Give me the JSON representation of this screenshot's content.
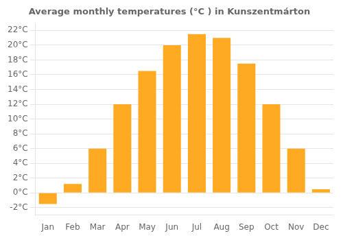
{
  "chart_data": {
    "type": "bar",
    "title": "Average monthly temperatures (°C ) in Kunszentmárton",
    "categories": [
      "Jan",
      "Feb",
      "Mar",
      "Apr",
      "May",
      "Jun",
      "Jul",
      "Aug",
      "Sep",
      "Oct",
      "Nov",
      "Dec"
    ],
    "values": [
      -1.5,
      1.2,
      6.0,
      12.0,
      16.5,
      20.0,
      21.5,
      21.0,
      17.5,
      12.0,
      6.0,
      0.5
    ],
    "color": "#FFAA22",
    "ylim": [
      -3,
      23
    ],
    "yticks": [
      {
        "value": -2,
        "label": "-2°C"
      },
      {
        "value": 0,
        "label": "0°C"
      },
      {
        "value": 2,
        "label": "2°C"
      },
      {
        "value": 4,
        "label": "4°C"
      },
      {
        "value": 6,
        "label": "6°C"
      },
      {
        "value": 8,
        "label": "8°C"
      },
      {
        "value": 10,
        "label": "10°C"
      },
      {
        "value": 12,
        "label": "12°C"
      },
      {
        "value": 14,
        "label": "14°C"
      },
      {
        "value": 16,
        "label": "16°C"
      },
      {
        "value": 18,
        "label": "18°C"
      },
      {
        "value": 20,
        "label": "20°C"
      },
      {
        "value": 22,
        "label": "22°C"
      }
    ],
    "grid": true
  }
}
